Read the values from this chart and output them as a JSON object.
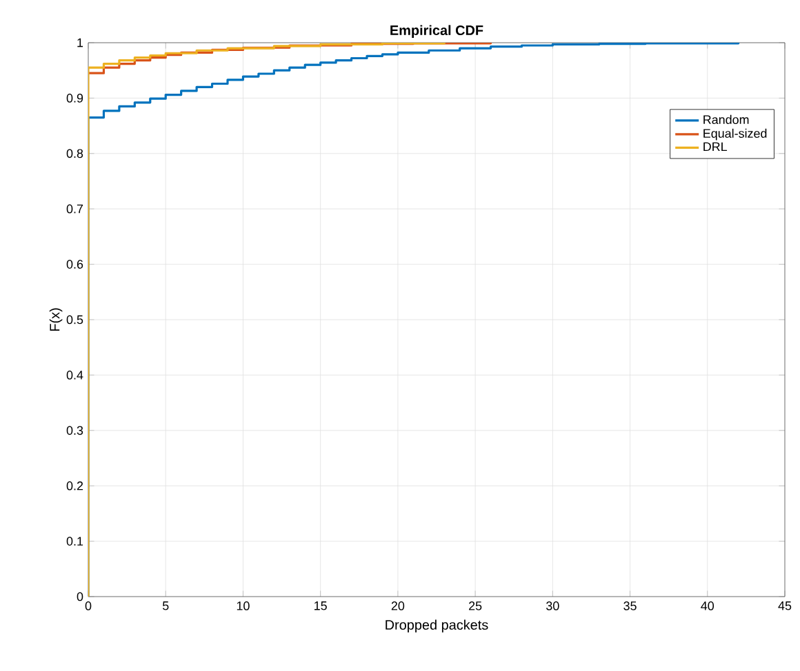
{
  "chart_data": {
    "type": "step",
    "title": "Empirical CDF",
    "xlabel": "Dropped packets",
    "ylabel": "F(x)",
    "xlim": [
      0,
      45
    ],
    "ylim": [
      0,
      1
    ],
    "xticks": [
      0,
      5,
      10,
      15,
      20,
      25,
      30,
      35,
      40,
      45
    ],
    "yticks": [
      0,
      0.1,
      0.2,
      0.3,
      0.4,
      0.5,
      0.6,
      0.7,
      0.8,
      0.9,
      1
    ],
    "grid": true,
    "legend": "top right",
    "series": [
      {
        "name": "Random",
        "color": "#0072bd",
        "x": [
          0,
          0,
          1,
          2,
          3,
          4,
          5,
          6,
          7,
          8,
          9,
          10,
          11,
          12,
          13,
          14,
          15,
          16,
          17,
          18,
          19,
          20,
          22,
          24,
          26,
          28,
          30,
          33,
          36,
          42
        ],
        "values": [
          0,
          0.865,
          0.877,
          0.885,
          0.892,
          0.899,
          0.906,
          0.913,
          0.92,
          0.926,
          0.933,
          0.939,
          0.944,
          0.95,
          0.955,
          0.96,
          0.964,
          0.968,
          0.972,
          0.976,
          0.979,
          0.982,
          0.986,
          0.99,
          0.993,
          0.995,
          0.997,
          0.998,
          0.999,
          1
        ]
      },
      {
        "name": "Equal-sized",
        "color": "#d95319",
        "x": [
          0,
          1,
          2,
          3,
          4,
          5,
          6,
          8,
          10,
          13,
          17,
          21,
          26
        ],
        "values": [
          0.945,
          0.955,
          0.962,
          0.968,
          0.973,
          0.978,
          0.982,
          0.987,
          0.991,
          0.995,
          0.998,
          0.999,
          1
        ]
      },
      {
        "name": "DRL",
        "color": "#edb120",
        "x": [
          0,
          0,
          1,
          2,
          3,
          4,
          5,
          7,
          9,
          12,
          15,
          19,
          23
        ],
        "values": [
          0,
          0.955,
          0.962,
          0.968,
          0.973,
          0.977,
          0.981,
          0.986,
          0.99,
          0.994,
          0.997,
          0.999,
          1
        ]
      }
    ]
  }
}
